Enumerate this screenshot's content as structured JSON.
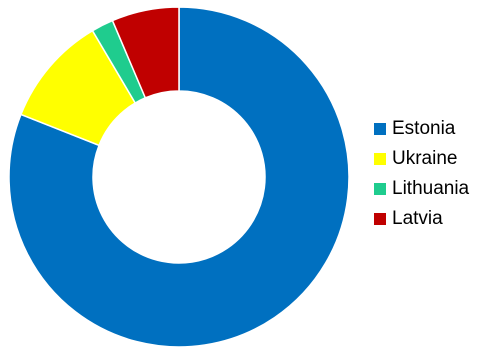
{
  "chart_data": {
    "type": "pie",
    "variant": "donut",
    "title": "",
    "categories": [
      "Estonia",
      "Ukraine",
      "Lithuania",
      "Latvia"
    ],
    "values": [
      81,
      10.5,
      2.1,
      6.4
    ],
    "colors": [
      "#0070C0",
      "#FFFF00",
      "#1FCC8E",
      "#C00000"
    ],
    "legend": {
      "position": "right",
      "items": [
        {
          "label": "Estonia",
          "color": "#0070C0",
          "icon": "square-swatch"
        },
        {
          "label": "Ukraine",
          "color": "#FFFF00",
          "icon": "square-swatch"
        },
        {
          "label": "Lithuania",
          "color": "#1FCC8E",
          "icon": "square-swatch"
        },
        {
          "label": "Latvia",
          "color": "#C00000",
          "icon": "square-swatch"
        }
      ]
    }
  }
}
